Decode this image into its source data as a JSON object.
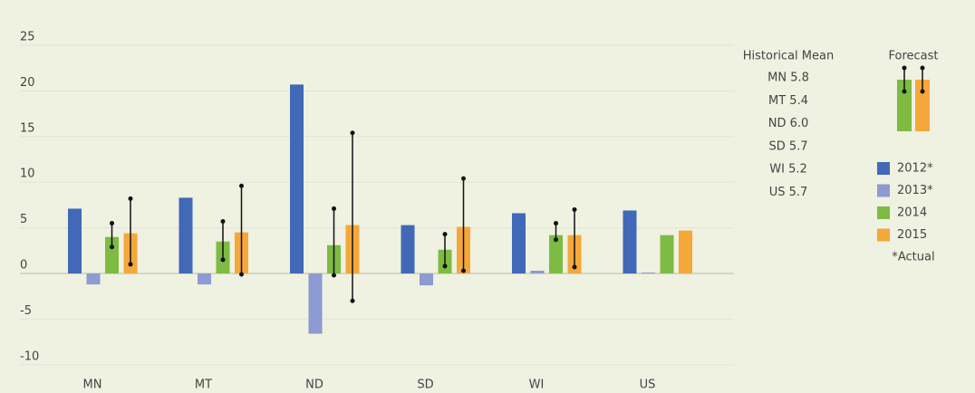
{
  "chart_data": {
    "type": "bar",
    "categories": [
      "MN",
      "MT",
      "ND",
      "SD",
      "WI",
      "US"
    ],
    "ylim": [
      -10,
      27
    ],
    "yticks": [
      -10,
      -5,
      0,
      5,
      10,
      15,
      20,
      25
    ],
    "grid": true,
    "series": [
      {
        "name": "2012*",
        "color": "#4169b8",
        "values": [
          7.1,
          8.3,
          20.7,
          5.3,
          6.6,
          6.9
        ]
      },
      {
        "name": "2013*",
        "color": "#8c9bd1",
        "values": [
          -1.2,
          -1.2,
          -6.6,
          -1.3,
          0.3,
          0.1
        ]
      },
      {
        "name": "2014",
        "color": "#7dbb42",
        "values": [
          4.0,
          3.5,
          3.1,
          2.6,
          4.2,
          4.2
        ],
        "ranges": [
          [
            2.9,
            5.5
          ],
          [
            1.5,
            5.7
          ],
          [
            -0.2,
            7.1
          ],
          [
            0.8,
            4.3
          ],
          [
            3.7,
            5.5
          ],
          null
        ]
      },
      {
        "name": "2015",
        "color": "#f5a83a",
        "values": [
          4.4,
          4.5,
          5.3,
          5.1,
          4.2,
          4.7
        ],
        "ranges": [
          [
            1.0,
            8.2
          ],
          [
            -0.1,
            9.6
          ],
          [
            -3.0,
            15.4
          ],
          [
            0.3,
            10.4
          ],
          [
            0.7,
            7.0
          ],
          null
        ]
      }
    ],
    "historical_mean": {
      "title": "Historical Mean",
      "items": [
        "MN 5.8",
        "MT 5.4",
        "ND 6.0",
        "SD 5.7",
        "WI 5.2",
        "US 5.7"
      ]
    },
    "forecast_label": "Forecast",
    "footnote": "*Actual"
  }
}
